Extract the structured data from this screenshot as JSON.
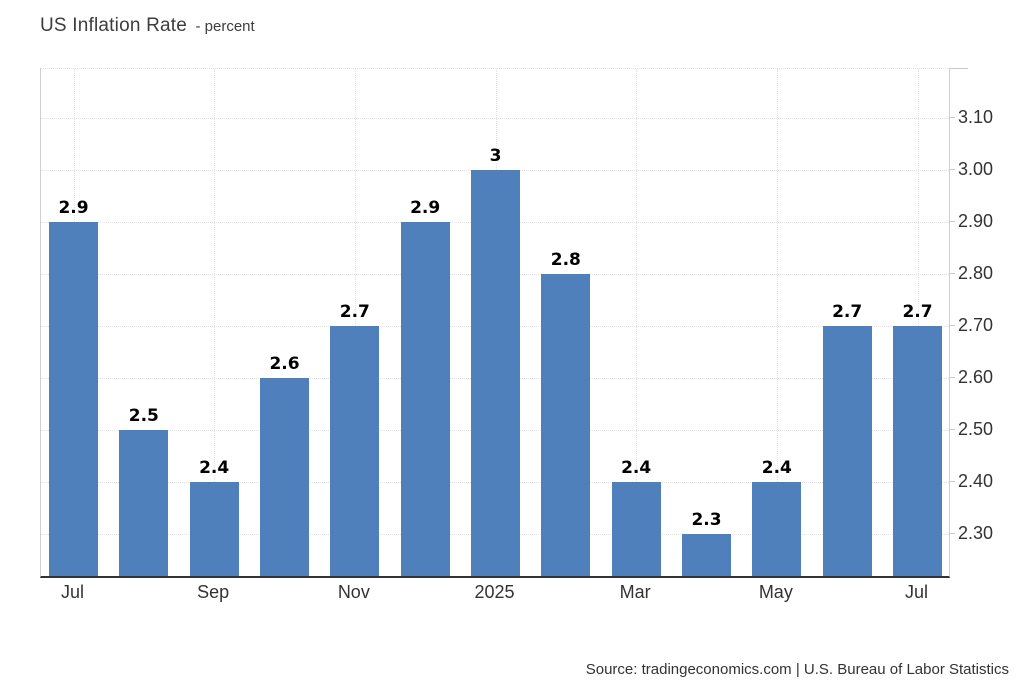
{
  "header": {
    "title": "US Inflation Rate",
    "subtitle": "- percent"
  },
  "footer": {
    "source": "Source: tradingeconomics.com | U.S. Bureau of Labor Statistics"
  },
  "chart_data": {
    "type": "bar",
    "title": "US Inflation Rate",
    "subtitle_unit": "percent",
    "categories": [
      "Jul",
      "",
      "Sep",
      "",
      "Nov",
      "",
      "2025",
      "",
      "Mar",
      "",
      "May",
      "",
      "Jul"
    ],
    "values": [
      2.9,
      2.5,
      2.4,
      2.6,
      2.7,
      2.9,
      3,
      2.8,
      2.4,
      2.3,
      2.4,
      2.7,
      2.7
    ],
    "bar_labels": [
      "2.9",
      "2.5",
      "2.4",
      "2.6",
      "2.7",
      "2.9",
      "3",
      "2.8",
      "2.4",
      "2.3",
      "2.4",
      "2.7",
      "2.7"
    ],
    "x_tick_labels": [
      "Jul",
      "Sep",
      "Nov",
      "2025",
      "Mar",
      "May",
      "Jul"
    ],
    "x_tick_indices": [
      0,
      2,
      4,
      6,
      8,
      10,
      12
    ],
    "y_tick_labels": [
      "2.30",
      "2.40",
      "2.50",
      "2.60",
      "2.70",
      "2.80",
      "2.90",
      "3.00",
      "3.10"
    ],
    "y_ticks": [
      2.3,
      2.4,
      2.5,
      2.6,
      2.7,
      2.8,
      2.9,
      3.0,
      3.1
    ],
    "ylim": [
      2.22,
      3.195
    ],
    "grid": "dotted",
    "legend": "none",
    "y_axis_side": "right",
    "bar_color": "#4f80bc",
    "xlabel": "",
    "ylabel": ""
  }
}
